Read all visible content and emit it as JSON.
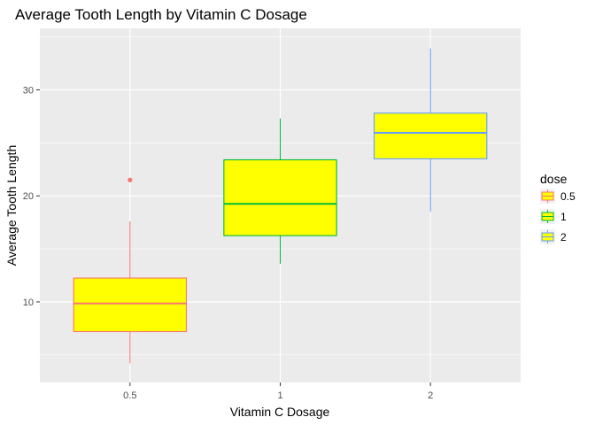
{
  "chart_data": {
    "type": "boxplot",
    "title": "Average Tooth Length by Vitamin C Dosage",
    "xlabel": "Vitamin C Dosage",
    "ylabel": "Average Tooth Length",
    "categories": [
      "0.5",
      "1",
      "2"
    ],
    "ylim": [
      2.4,
      35.8
    ],
    "y_ticks": [
      10,
      20,
      30
    ],
    "grid": true,
    "fill_color": "#ffff00",
    "panel_background": "#ebebeb",
    "legend": {
      "title": "dose",
      "position": "right",
      "entries": [
        "0.5",
        "1",
        "2"
      ]
    },
    "boxes": [
      {
        "label": "0.5",
        "whisker_low": 4.2,
        "q1": 7.2,
        "median": 9.85,
        "q3": 12.25,
        "whisker_high": 17.6,
        "outliers": [
          21.5
        ],
        "color": "#f8766d"
      },
      {
        "label": "1",
        "whisker_low": 13.6,
        "q1": 16.25,
        "median": 19.25,
        "q3": 23.4,
        "whisker_high": 27.3,
        "outliers": [],
        "color": "#00ba38"
      },
      {
        "label": "2",
        "whisker_low": 18.5,
        "q1": 23.5,
        "median": 25.95,
        "q3": 27.8,
        "whisker_high": 33.9,
        "outliers": [],
        "color": "#619cff"
      }
    ]
  }
}
